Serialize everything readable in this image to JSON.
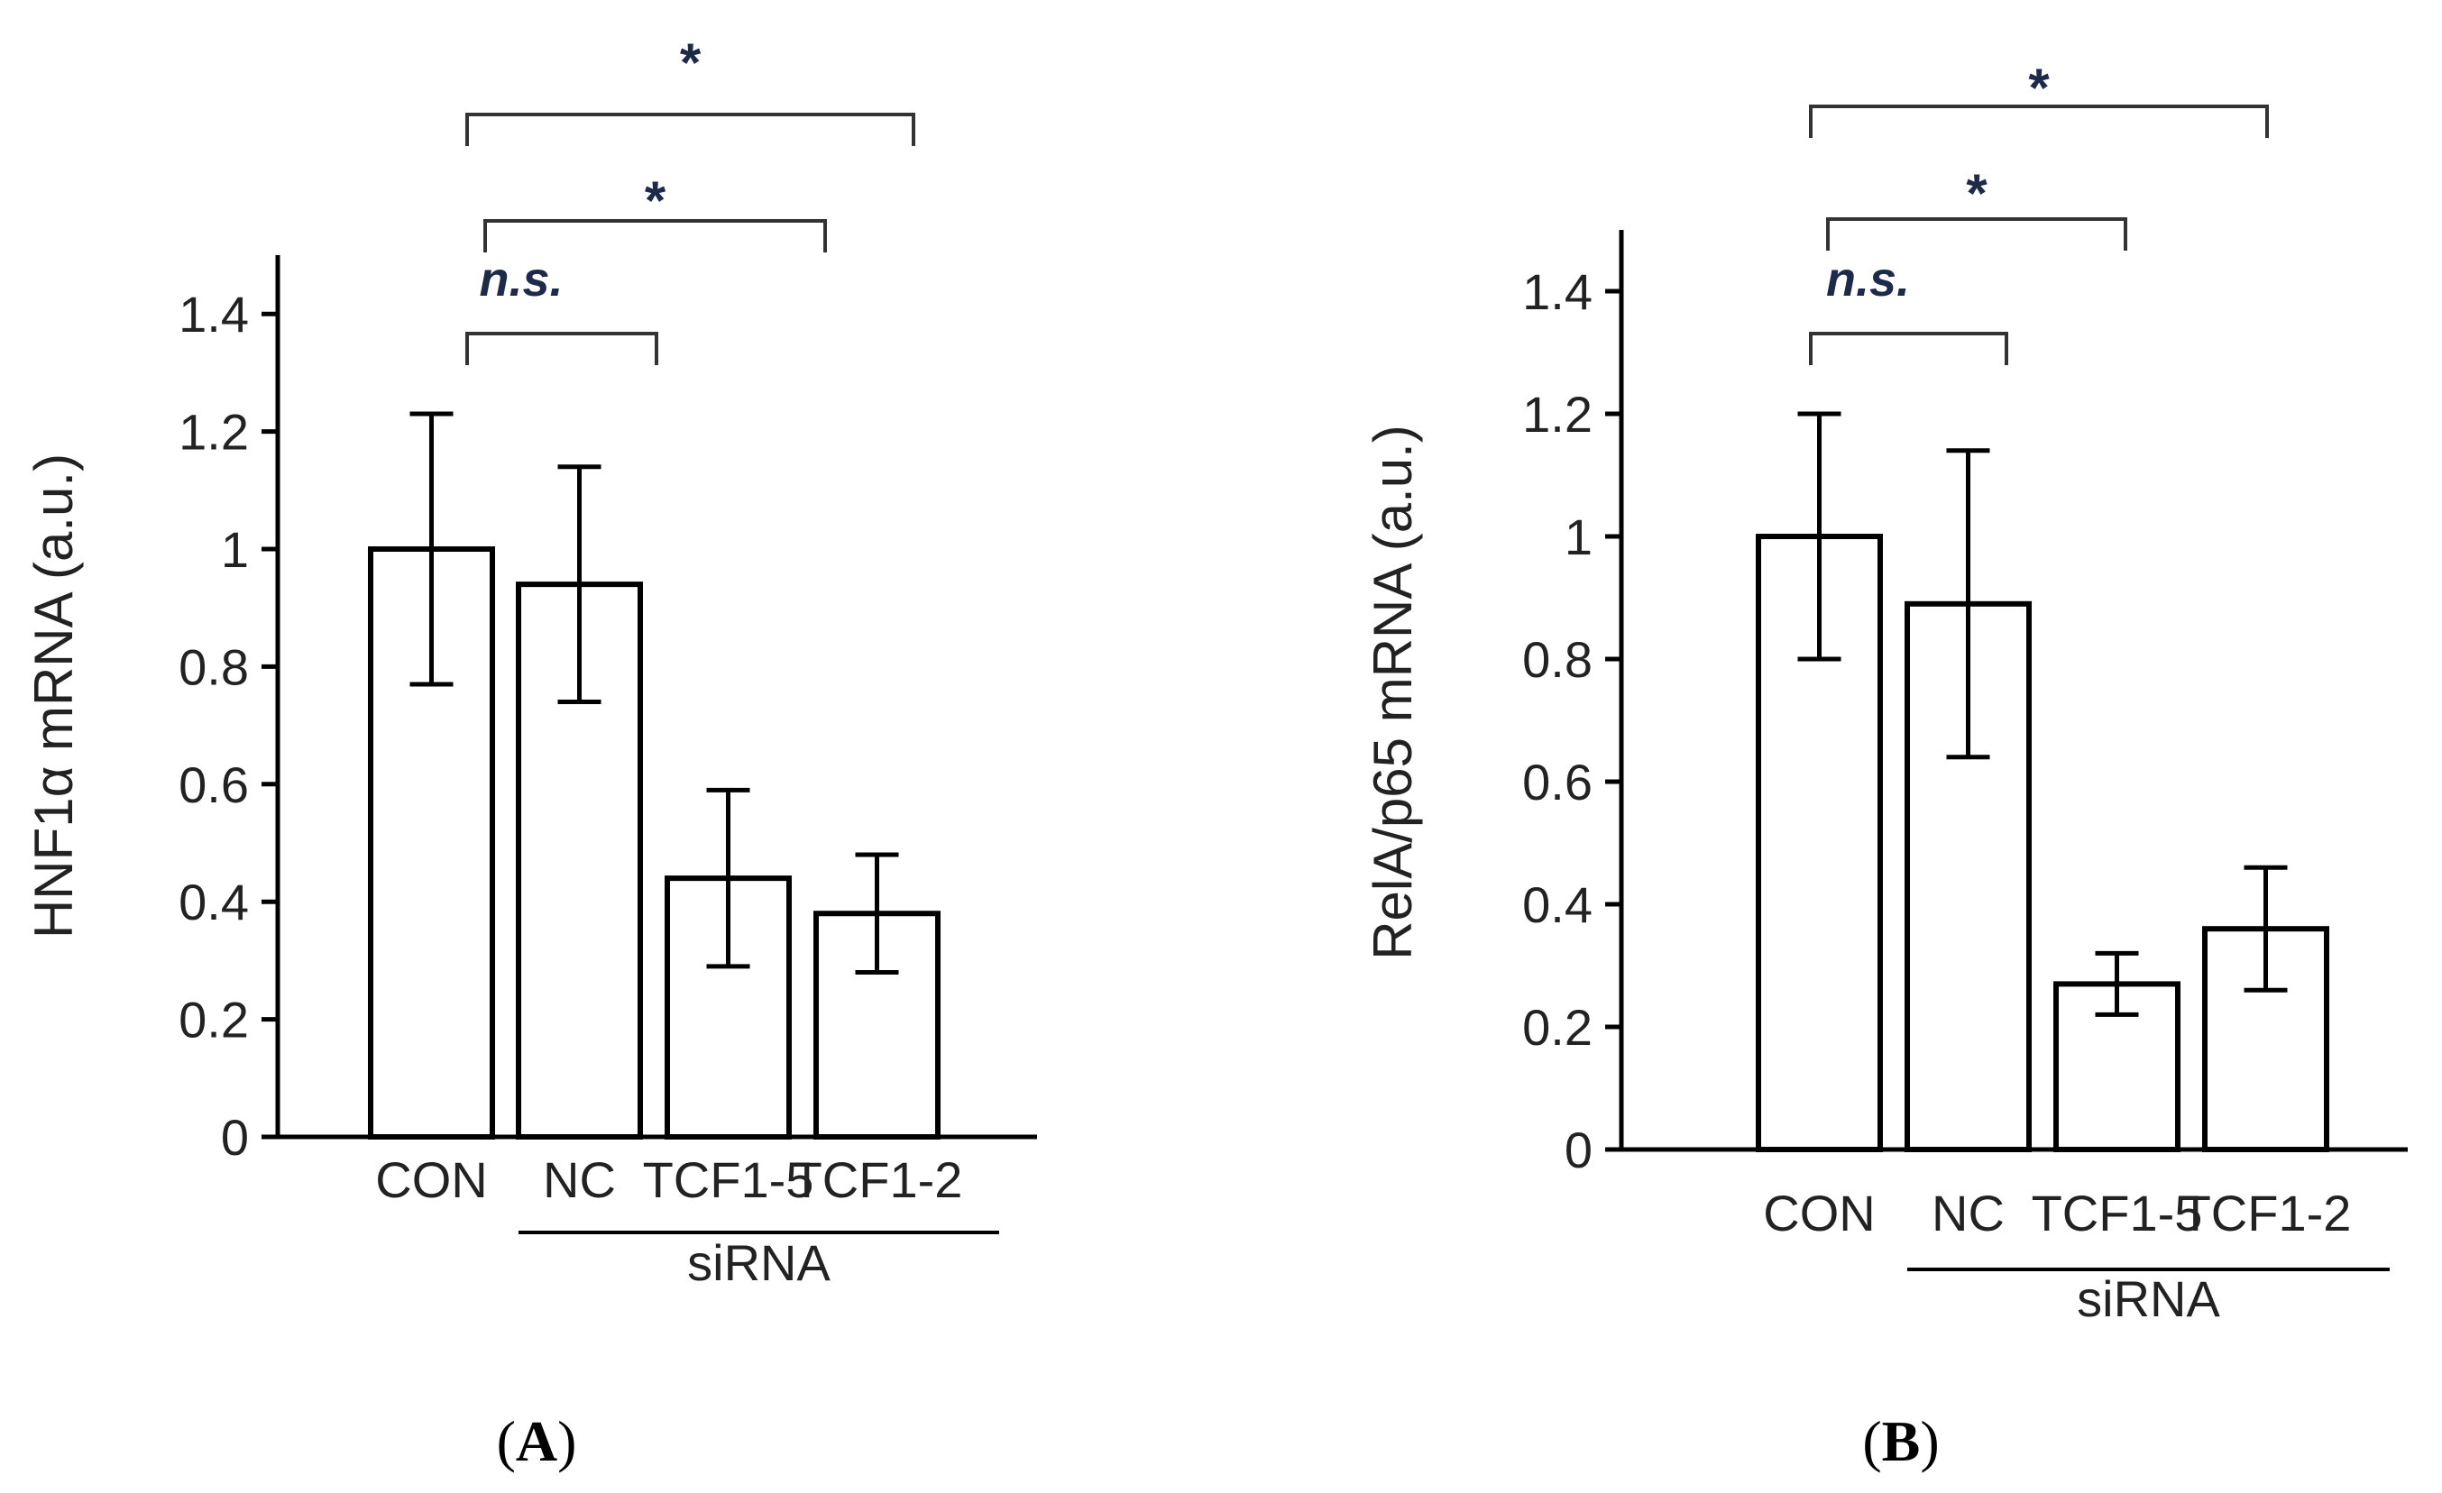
{
  "chart_data": [
    {
      "type": "bar",
      "panel": "A",
      "panel_label": [
        "(",
        "A",
        ")"
      ],
      "title": "",
      "ylabel": "HNF1α mRNA  (a.u.)",
      "xlabel": "",
      "categories": [
        "CON",
        "NC",
        "TCF1-5",
        "TCF1-2"
      ],
      "group_label": "siRNA",
      "group_members": [
        "NC",
        "TCF1-5",
        "TCF1-2"
      ],
      "values": [
        1.0,
        0.94,
        0.44,
        0.38
      ],
      "errors": [
        0.23,
        0.2,
        0.15,
        0.1
      ],
      "ylim": [
        0,
        1.5
      ],
      "yticks": [
        0,
        0.2,
        0.4,
        0.6,
        0.8,
        1,
        1.2,
        1.4
      ],
      "ytick_labels": [
        "0",
        "0.2",
        "0.4",
        "0.6",
        "0.8",
        "1",
        "1.2",
        "1.4"
      ],
      "significance": [
        {
          "from": "CON",
          "to": "NC",
          "label": "n.s."
        },
        {
          "from": "CON",
          "to": "TCF1-5",
          "label": "*"
        },
        {
          "from": "CON",
          "to": "TCF1-2",
          "label": "*"
        }
      ]
    },
    {
      "type": "bar",
      "panel": "B",
      "panel_label": [
        "(",
        "B",
        ")"
      ],
      "title": "",
      "ylabel": "RelA/p65 mRNA (a.u.)",
      "xlabel": "",
      "categories": [
        "CON",
        "NC",
        "TCF1-5",
        "TCF1-2"
      ],
      "group_label": "siRNA",
      "group_members": [
        "NC",
        "TCF1-5",
        "TCF1-2"
      ],
      "values": [
        1.0,
        0.89,
        0.27,
        0.36
      ],
      "errors": [
        0.2,
        0.25,
        0.05,
        0.1
      ],
      "ylim": [
        0,
        1.5
      ],
      "yticks": [
        0,
        0.2,
        0.4,
        0.6,
        0.8,
        1,
        1.2,
        1.4
      ],
      "ytick_labels": [
        "0",
        "0.2",
        "0.4",
        "0.6",
        "0.8",
        "1",
        "1.2",
        "1.4"
      ],
      "significance": [
        {
          "from": "CON",
          "to": "NC",
          "label": "n.s."
        },
        {
          "from": "CON",
          "to": "TCF1-5",
          "label": "*"
        },
        {
          "from": "CON",
          "to": "TCF1-2",
          "label": "*"
        }
      ]
    }
  ]
}
